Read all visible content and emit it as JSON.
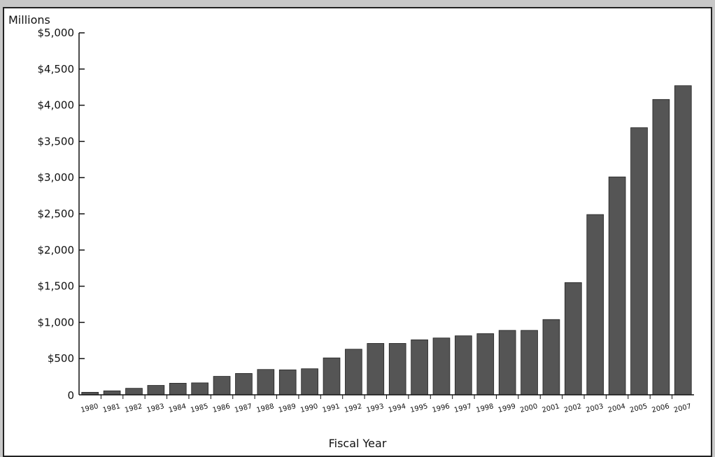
{
  "chart_data": {
    "type": "bar",
    "title": "",
    "ylabel": "Millions",
    "xlabel": "Fiscal Year",
    "ylim": [
      0,
      5000
    ],
    "grid": false,
    "legend": "none",
    "bar_color": "#555555",
    "y_ticks": [
      0,
      500,
      1000,
      1500,
      2000,
      2500,
      3000,
      3500,
      4000,
      4500,
      5000
    ],
    "y_tick_labels": [
      "0",
      "$500",
      "$1,000",
      "$1,500",
      "$2,000",
      "$2,500",
      "$3,000",
      "$3,500",
      "$4,000",
      "$4,500",
      "$5,000"
    ],
    "categories": [
      "1980",
      "1981",
      "1982",
      "1983",
      "1984",
      "1985",
      "1986",
      "1987",
      "1988",
      "1989",
      "1990",
      "1991",
      "1992",
      "1993",
      "1994",
      "1995",
      "1996",
      "1997",
      "1998",
      "1999",
      "2000",
      "2001",
      "2002",
      "2003",
      "2004",
      "2005",
      "2006",
      "2007"
    ],
    "values": [
      35,
      55,
      90,
      130,
      160,
      165,
      255,
      295,
      350,
      345,
      360,
      510,
      630,
      710,
      710,
      760,
      785,
      815,
      845,
      890,
      890,
      1040,
      1550,
      2490,
      3010,
      3690,
      4080,
      4270
    ]
  }
}
